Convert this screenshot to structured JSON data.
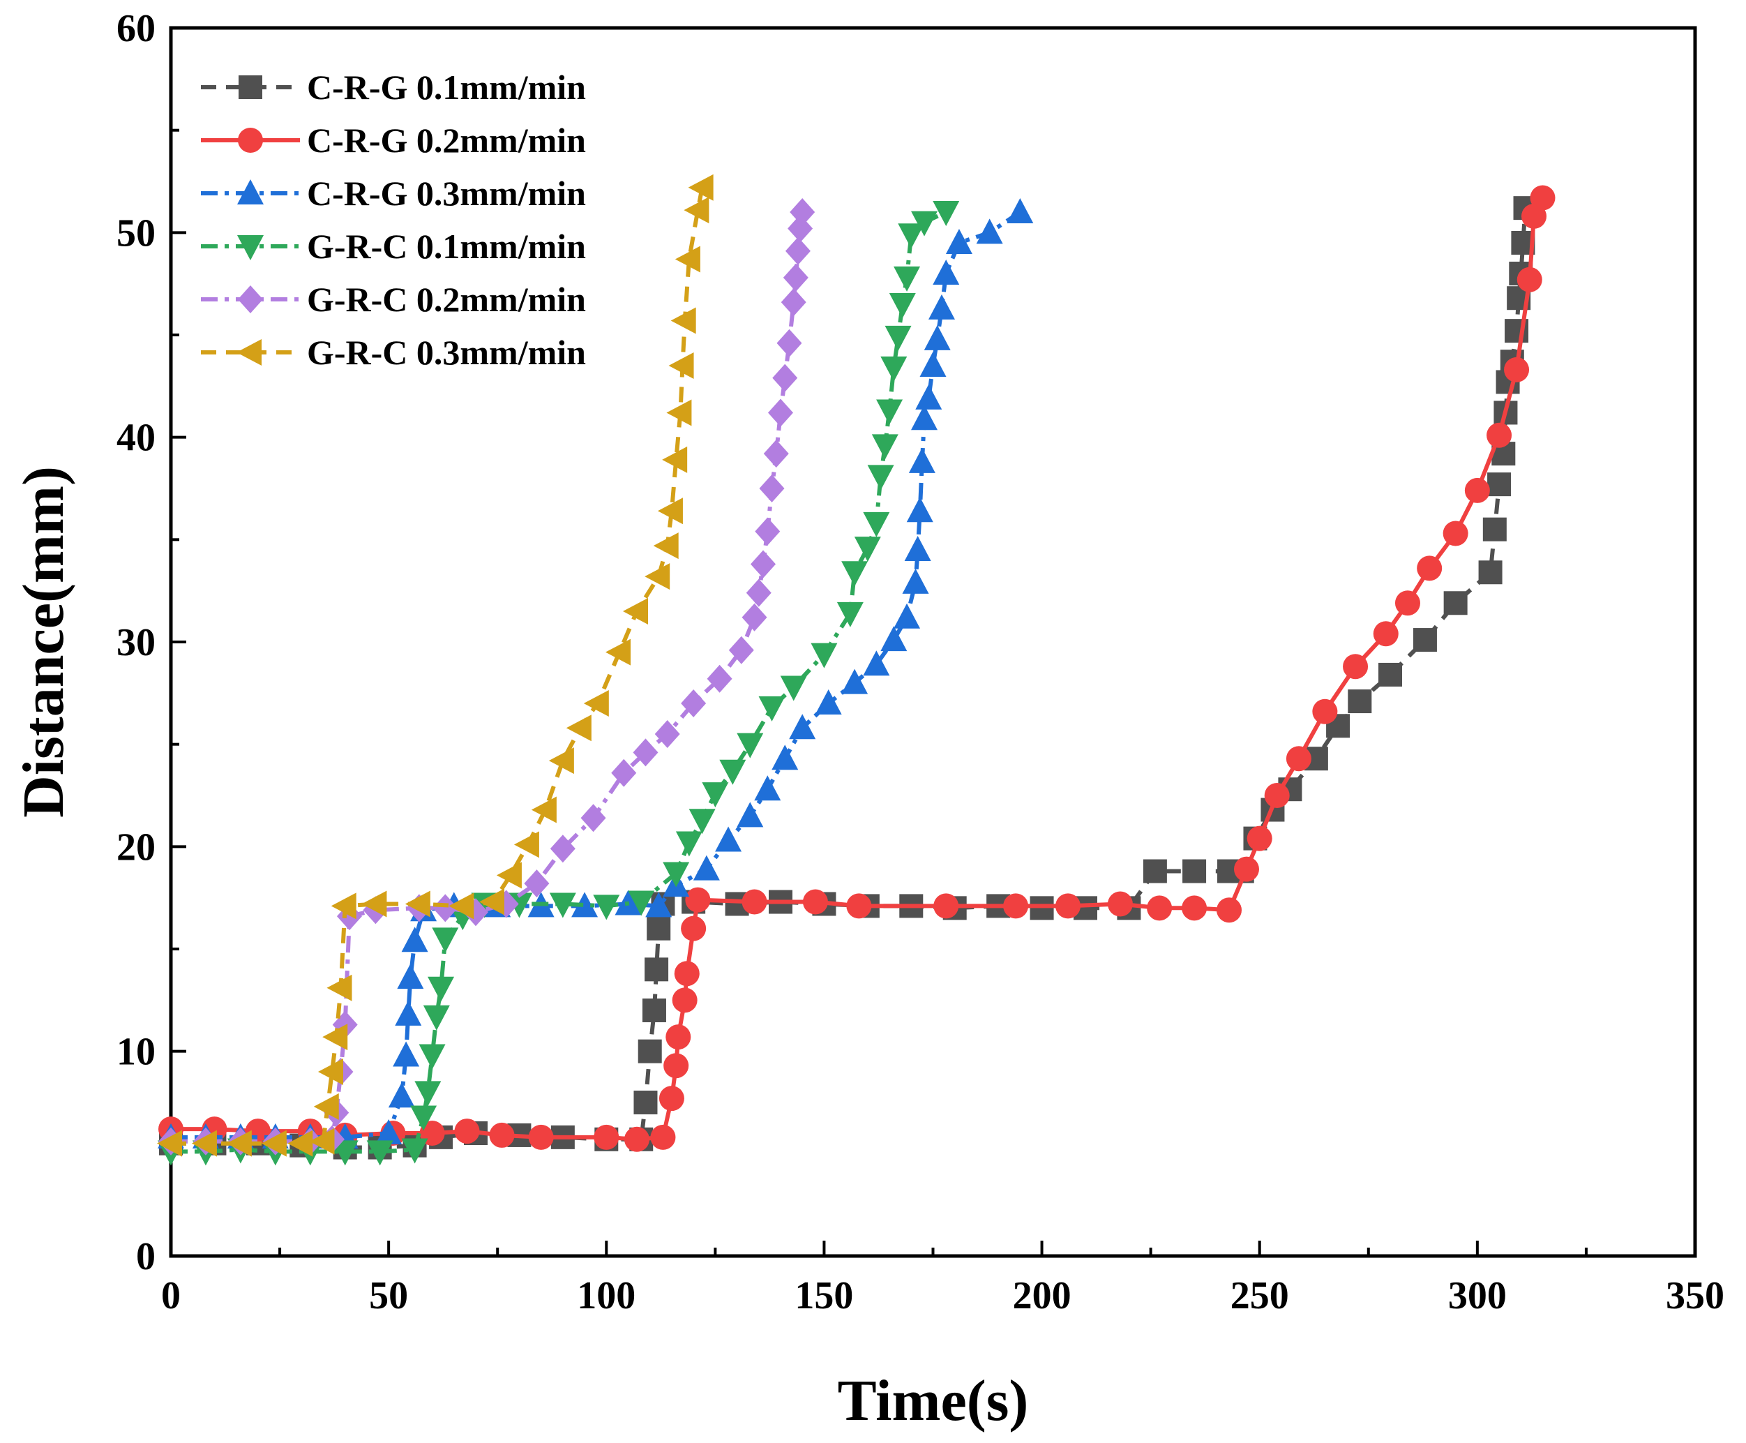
{
  "chart_data": {
    "type": "line",
    "xlabel": "Time(s)",
    "ylabel": "Distance(mm)",
    "xlim": [
      0,
      350
    ],
    "ylim": [
      0,
      60
    ],
    "xticks": [
      0,
      50,
      100,
      150,
      200,
      250,
      300,
      350
    ],
    "yticks": [
      0,
      10,
      20,
      30,
      40,
      50,
      60
    ],
    "grid": false,
    "legend_position": "top-left",
    "series": [
      {
        "name": "C-R-G 0.1mm/min",
        "color": "#505050",
        "marker": "square",
        "dash": "dash",
        "points": [
          [
            0,
            5.5
          ],
          [
            10,
            5.5
          ],
          [
            20,
            5.5
          ],
          [
            30,
            5.4
          ],
          [
            40,
            5.3
          ],
          [
            48,
            5.3
          ],
          [
            56,
            5.4
          ],
          [
            62,
            5.8
          ],
          [
            70,
            6.0
          ],
          [
            80,
            5.9
          ],
          [
            90,
            5.8
          ],
          [
            100,
            5.7
          ],
          [
            108,
            5.7
          ],
          [
            109,
            7.5
          ],
          [
            110,
            10
          ],
          [
            111,
            12
          ],
          [
            111.5,
            14
          ],
          [
            112,
            16
          ],
          [
            113,
            17.2
          ],
          [
            120,
            17.3
          ],
          [
            130,
            17.2
          ],
          [
            140,
            17.3
          ],
          [
            150,
            17.2
          ],
          [
            160,
            17.1
          ],
          [
            170,
            17.1
          ],
          [
            180,
            17.0
          ],
          [
            190,
            17.1
          ],
          [
            200,
            17.0
          ],
          [
            210,
            17.0
          ],
          [
            220,
            17.0
          ],
          [
            226,
            18.8
          ],
          [
            235,
            18.8
          ],
          [
            243,
            18.8
          ],
          [
            246,
            18.8
          ],
          [
            249,
            20.4
          ],
          [
            253,
            21.8
          ],
          [
            257,
            22.8
          ],
          [
            263,
            24.3
          ],
          [
            268,
            25.9
          ],
          [
            273,
            27.1
          ],
          [
            280,
            28.4
          ],
          [
            288,
            30.1
          ],
          [
            295,
            31.9
          ],
          [
            303,
            33.4
          ],
          [
            304,
            35.5
          ],
          [
            305,
            37.7
          ],
          [
            306,
            39.2
          ],
          [
            306.5,
            41.2
          ],
          [
            307,
            42.7
          ],
          [
            308,
            43.7
          ],
          [
            309,
            45.2
          ],
          [
            309.5,
            46.8
          ],
          [
            310,
            48.0
          ],
          [
            310.5,
            49.5
          ],
          [
            311,
            51.2
          ]
        ]
      },
      {
        "name": "C-R-G 0.2mm/min",
        "color": "#f04040",
        "marker": "circle",
        "dash": "solid",
        "points": [
          [
            0,
            6.2
          ],
          [
            10,
            6.2
          ],
          [
            20,
            6.1
          ],
          [
            32,
            6.1
          ],
          [
            40,
            5.9
          ],
          [
            51,
            6.0
          ],
          [
            60,
            6.0
          ],
          [
            68,
            6.1
          ],
          [
            76,
            5.9
          ],
          [
            85,
            5.8
          ],
          [
            100,
            5.8
          ],
          [
            107,
            5.7
          ],
          [
            113,
            5.8
          ],
          [
            115,
            7.7
          ],
          [
            116,
            9.3
          ],
          [
            116.5,
            10.7
          ],
          [
            118,
            12.5
          ],
          [
            118.5,
            13.8
          ],
          [
            120,
            16.0
          ],
          [
            121,
            17.4
          ],
          [
            134,
            17.3
          ],
          [
            148,
            17.3
          ],
          [
            158,
            17.1
          ],
          [
            178,
            17.1
          ],
          [
            194,
            17.1
          ],
          [
            206,
            17.1
          ],
          [
            218,
            17.2
          ],
          [
            227,
            17.0
          ],
          [
            235,
            17.0
          ],
          [
            243,
            16.9
          ],
          [
            247,
            18.9
          ],
          [
            250,
            20.4
          ],
          [
            254,
            22.5
          ],
          [
            259,
            24.3
          ],
          [
            265,
            26.6
          ],
          [
            272,
            28.8
          ],
          [
            279,
            30.4
          ],
          [
            284,
            31.9
          ],
          [
            289,
            33.6
          ],
          [
            295,
            35.3
          ],
          [
            300,
            37.4
          ],
          [
            305,
            40.1
          ],
          [
            309,
            43.3
          ],
          [
            312,
            47.7
          ],
          [
            313,
            50.8
          ],
          [
            315,
            51.7
          ]
        ]
      },
      {
        "name": "C-R-G 0.3mm/min",
        "color": "#1f6fd8",
        "marker": "triangle-up",
        "dash": "dashdot",
        "points": [
          [
            0,
            5.8
          ],
          [
            8,
            5.8
          ],
          [
            16,
            5.8
          ],
          [
            24,
            5.8
          ],
          [
            32,
            5.8
          ],
          [
            40,
            5.8
          ],
          [
            50,
            6.0
          ],
          [
            53,
            7.8
          ],
          [
            54,
            9.8
          ],
          [
            54.5,
            11.8
          ],
          [
            55,
            13.6
          ],
          [
            56,
            15.4
          ],
          [
            58,
            16.9
          ],
          [
            65,
            17.1
          ],
          [
            75,
            17.1
          ],
          [
            85,
            17.1
          ],
          [
            95,
            17.1
          ],
          [
            105,
            17.2
          ],
          [
            112,
            17.1
          ],
          [
            116,
            18.1
          ],
          [
            123,
            18.9
          ],
          [
            128,
            20.3
          ],
          [
            133,
            21.5
          ],
          [
            137,
            22.8
          ],
          [
            141,
            24.3
          ],
          [
            145,
            25.8
          ],
          [
            151,
            27.0
          ],
          [
            157,
            28.0
          ],
          [
            162,
            28.9
          ],
          [
            166,
            30.1
          ],
          [
            169,
            31.2
          ],
          [
            171,
            32.9
          ],
          [
            171.5,
            34.5
          ],
          [
            172,
            36.4
          ],
          [
            172.5,
            38.8
          ],
          [
            173,
            40.9
          ],
          [
            174,
            41.9
          ],
          [
            175,
            43.5
          ],
          [
            176,
            44.8
          ],
          [
            177,
            46.3
          ],
          [
            178,
            48.0
          ],
          [
            181,
            49.5
          ],
          [
            188,
            50.0
          ],
          [
            195,
            51.0
          ]
        ]
      },
      {
        "name": "G-R-C 0.1mm/min",
        "color": "#2ea85a",
        "marker": "triangle-down",
        "dash": "dashdot",
        "points": [
          [
            0,
            5.1
          ],
          [
            8,
            5.1
          ],
          [
            16,
            5.2
          ],
          [
            24,
            5.1
          ],
          [
            32,
            5.1
          ],
          [
            40,
            5.1
          ],
          [
            48,
            5.1
          ],
          [
            56,
            5.2
          ],
          [
            58,
            6.8
          ],
          [
            59,
            8.0
          ],
          [
            60,
            9.8
          ],
          [
            61,
            11.7
          ],
          [
            62,
            13.1
          ],
          [
            63,
            15.5
          ],
          [
            67,
            16.6
          ],
          [
            72,
            17.2
          ],
          [
            80,
            17.2
          ],
          [
            90,
            17.2
          ],
          [
            100,
            17.1
          ],
          [
            108,
            17.3
          ],
          [
            116,
            18.7
          ],
          [
            119,
            20.2
          ],
          [
            122,
            21.3
          ],
          [
            125,
            22.6
          ],
          [
            129,
            23.7
          ],
          [
            133,
            25.0
          ],
          [
            138,
            26.8
          ],
          [
            143,
            27.8
          ],
          [
            150,
            29.4
          ],
          [
            156,
            31.4
          ],
          [
            157,
            33.4
          ],
          [
            160,
            34.6
          ],
          [
            162,
            35.8
          ],
          [
            163,
            38.1
          ],
          [
            164,
            39.6
          ],
          [
            165,
            41.3
          ],
          [
            166,
            43.4
          ],
          [
            167,
            44.9
          ],
          [
            168,
            46.5
          ],
          [
            169,
            47.8
          ],
          [
            170,
            49.9
          ],
          [
            173,
            50.5
          ],
          [
            178,
            51.0
          ]
        ]
      },
      {
        "name": "G-R-C 0.2mm/min",
        "color": "#b27ee0",
        "marker": "diamond",
        "dash": "dashdot",
        "points": [
          [
            0,
            5.6
          ],
          [
            8,
            5.6
          ],
          [
            16,
            5.6
          ],
          [
            24,
            5.6
          ],
          [
            32,
            5.6
          ],
          [
            37,
            5.7
          ],
          [
            38,
            7.0
          ],
          [
            39,
            9.0
          ],
          [
            40,
            11.3
          ],
          [
            41,
            16.6
          ],
          [
            47,
            16.9
          ],
          [
            57,
            17.0
          ],
          [
            63,
            17.0
          ],
          [
            70,
            16.8
          ],
          [
            77,
            17.2
          ],
          [
            84,
            18.2
          ],
          [
            90,
            19.9
          ],
          [
            97,
            21.4
          ],
          [
            104,
            23.6
          ],
          [
            109,
            24.6
          ],
          [
            114,
            25.5
          ],
          [
            120,
            27.0
          ],
          [
            126,
            28.2
          ],
          [
            131,
            29.6
          ],
          [
            134,
            31.2
          ],
          [
            135,
            32.4
          ],
          [
            136,
            33.8
          ],
          [
            137,
            35.4
          ],
          [
            138,
            37.5
          ],
          [
            139,
            39.2
          ],
          [
            140,
            41.2
          ],
          [
            141,
            42.9
          ],
          [
            142,
            44.6
          ],
          [
            143,
            46.6
          ],
          [
            143.5,
            47.8
          ],
          [
            144,
            49.1
          ],
          [
            144.5,
            50.2
          ],
          [
            145,
            51.0
          ]
        ]
      },
      {
        "name": "G-R-C 0.3mm/min",
        "color": "#d4a017",
        "marker": "triangle-left",
        "dash": "dash",
        "points": [
          [
            0,
            5.5
          ],
          [
            8,
            5.5
          ],
          [
            16,
            5.5
          ],
          [
            24,
            5.5
          ],
          [
            30,
            5.5
          ],
          [
            35,
            5.6
          ],
          [
            36,
            7.3
          ],
          [
            37,
            9.0
          ],
          [
            38,
            10.7
          ],
          [
            39,
            13.1
          ],
          [
            40,
            17.1
          ],
          [
            47,
            17.2
          ],
          [
            57,
            17.2
          ],
          [
            67,
            17.1
          ],
          [
            74,
            17.3
          ],
          [
            78,
            18.6
          ],
          [
            82,
            20.1
          ],
          [
            86,
            21.8
          ],
          [
            90,
            24.2
          ],
          [
            94,
            25.8
          ],
          [
            98,
            27.0
          ],
          [
            103,
            29.5
          ],
          [
            107,
            31.5
          ],
          [
            112,
            33.2
          ],
          [
            114,
            34.7
          ],
          [
            115,
            36.4
          ],
          [
            116,
            38.9
          ],
          [
            117,
            41.2
          ],
          [
            117.5,
            43.5
          ],
          [
            118,
            45.7
          ],
          [
            119,
            48.7
          ],
          [
            121,
            51.1
          ],
          [
            122,
            52.2
          ]
        ]
      }
    ]
  }
}
